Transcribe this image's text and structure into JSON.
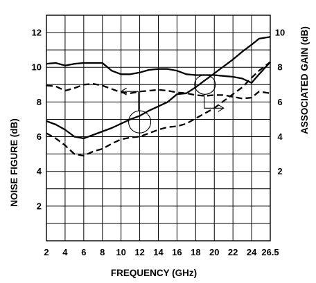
{
  "chart_data": {
    "type": "line",
    "xlabel": "FREQUENCY (GHz)",
    "ylabel_left": "NOISE FIGURE (dB)",
    "ylabel_right": "ASSOCIATED GAIN (dB)",
    "x_ticks": [
      "2",
      "4",
      "6",
      "8",
      "10",
      "12",
      "14",
      "16",
      "18",
      "20",
      "22",
      "24",
      "26.5"
    ],
    "x_tick_values": [
      2,
      4,
      6,
      8,
      10,
      12,
      14,
      16,
      18,
      20,
      22,
      24,
      26.5
    ],
    "xlim": [
      2,
      26.5
    ],
    "left_axis": {
      "ticks": [
        "2",
        "4",
        "6",
        "8",
        "10",
        "12"
      ],
      "tick_values": [
        2,
        4,
        6,
        8,
        10,
        12
      ],
      "ylim": [
        0,
        13
      ]
    },
    "right_axis": {
      "ticks": [
        "2",
        "4",
        "6",
        "8",
        "10"
      ],
      "tick_values": [
        2,
        4,
        6,
        8,
        10
      ],
      "ylim": [
        0,
        11
      ]
    },
    "grid": true,
    "series": [
      {
        "group": "noise_figure",
        "style": "solid",
        "axis": "left",
        "x": [
          2,
          3,
          4,
          5,
          6,
          7,
          8,
          9,
          10,
          11,
          12,
          13,
          14,
          15,
          16,
          17,
          18,
          19,
          20,
          21,
          22,
          23,
          24,
          25,
          26.5
        ],
        "y": [
          6.9,
          6.7,
          6.4,
          6.0,
          5.9,
          6.1,
          6.3,
          6.5,
          6.75,
          7.0,
          7.2,
          7.5,
          7.75,
          8.0,
          8.45,
          8.5,
          8.85,
          9.25,
          9.65,
          10.05,
          10.45,
          10.9,
          11.3,
          11.65,
          11.75
        ]
      },
      {
        "group": "noise_figure",
        "style": "dashed",
        "axis": "left",
        "x": [
          2,
          3,
          4,
          5,
          6,
          7,
          8,
          9,
          10,
          11,
          12,
          13,
          14,
          15,
          16,
          17,
          18,
          19,
          20,
          21,
          22,
          23,
          24,
          25,
          26.5
        ],
        "y": [
          6.2,
          5.9,
          5.5,
          5.0,
          4.9,
          5.15,
          5.3,
          5.6,
          5.85,
          5.95,
          6.0,
          6.2,
          6.4,
          6.55,
          6.6,
          6.75,
          7.05,
          7.35,
          7.65,
          8.05,
          8.45,
          8.85,
          9.4,
          9.8,
          10.3
        ]
      },
      {
        "group": "associated_gain",
        "style": "solid",
        "axis": "right",
        "x": [
          2,
          3,
          4,
          5,
          6,
          7,
          8,
          9,
          10,
          11,
          12,
          13,
          14,
          15,
          16,
          17,
          18,
          19,
          20,
          21,
          22,
          23,
          24,
          25,
          26.5
        ],
        "y": [
          8.2,
          8.25,
          8.1,
          8.2,
          8.25,
          8.25,
          8.25,
          7.8,
          7.6,
          7.6,
          7.7,
          7.85,
          7.9,
          7.9,
          7.8,
          7.6,
          7.55,
          7.55,
          7.55,
          7.5,
          7.45,
          7.35,
          7.1,
          7.6,
          8.3
        ]
      },
      {
        "group": "associated_gain",
        "style": "dashed",
        "axis": "right",
        "x": [
          2,
          3,
          4,
          5,
          6,
          7,
          8,
          9,
          10,
          11,
          12,
          13,
          14,
          15,
          16,
          17,
          18,
          19,
          20,
          21,
          22,
          23,
          24,
          25,
          26.5
        ],
        "y": [
          6.95,
          6.9,
          6.65,
          6.8,
          7.0,
          7.05,
          6.95,
          6.75,
          6.55,
          6.5,
          6.6,
          6.65,
          6.7,
          6.65,
          6.55,
          6.5,
          6.4,
          6.35,
          6.4,
          6.4,
          6.3,
          6.2,
          6.25,
          6.6,
          6.5
        ]
      }
    ]
  }
}
